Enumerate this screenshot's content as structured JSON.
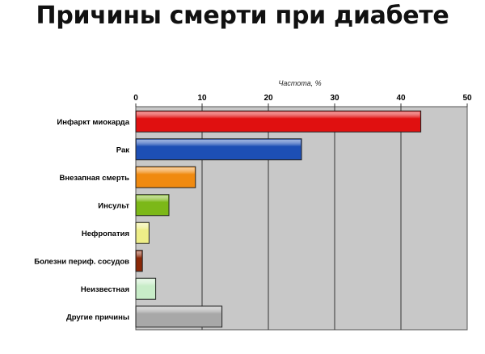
{
  "chart_data": {
    "type": "bar",
    "orientation": "horizontal",
    "title": "Причины смерти при диабете",
    "xlabel": "Частота, %",
    "ylabel": "",
    "xlim": [
      0,
      50
    ],
    "ticks": [
      "0",
      "10",
      "20",
      "30",
      "40",
      "50"
    ],
    "tick_values": [
      0,
      10,
      20,
      30,
      40,
      50
    ],
    "grid": true,
    "categories": [
      "Инфаркт миокарда",
      "Рак",
      "Внезапная смерть",
      "Инсульт",
      "Нефропатия",
      "Болезни периф. сосудов",
      "Неизвестная",
      "Другие причины"
    ],
    "values": [
      43,
      25,
      9,
      5,
      2,
      1,
      3,
      13
    ],
    "colors": [
      "#e01010",
      "#1d4fb5",
      "#f08a10",
      "#7cb818",
      "#eeee88",
      "#8a2808",
      "#c8ecc8",
      "#a8a8a8"
    ],
    "plot_background": "#c8c8c8"
  }
}
